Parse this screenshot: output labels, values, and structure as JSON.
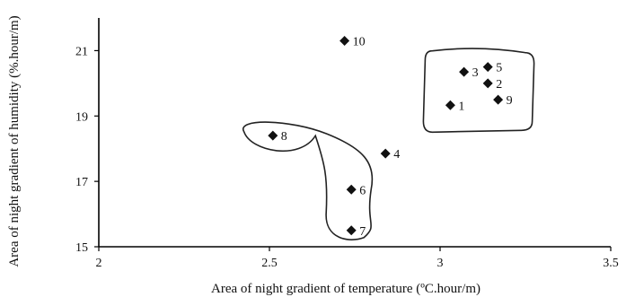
{
  "chart_data": {
    "type": "scatter",
    "title": "",
    "xlabel": "Area of night gradient of temperature  (ºC.hour/m)",
    "ylabel": "Area of night gradient of humidity (%.hour/m)",
    "xlim": [
      2,
      3.5
    ],
    "ylim": [
      15,
      22
    ],
    "xticks": [
      "2",
      "2.5",
      "3",
      "3.5"
    ],
    "yticks": [
      "15",
      "17",
      "19",
      "21"
    ],
    "xtick_values": [
      2,
      2.5,
      3,
      3.5
    ],
    "ytick_values": [
      15,
      17,
      19,
      21
    ],
    "grid": false,
    "marker": "diamond",
    "points": [
      {
        "label": "1",
        "x": 3.03,
        "y": 19.33
      },
      {
        "label": "2",
        "x": 3.14,
        "y": 20.0
      },
      {
        "label": "3",
        "x": 3.07,
        "y": 20.35
      },
      {
        "label": "4",
        "x": 2.84,
        "y": 17.85
      },
      {
        "label": "5",
        "x": 3.14,
        "y": 20.5
      },
      {
        "label": "6",
        "x": 2.74,
        "y": 16.75
      },
      {
        "label": "7",
        "x": 2.74,
        "y": 15.5
      },
      {
        "label": "8",
        "x": 2.51,
        "y": 18.4
      },
      {
        "label": "9",
        "x": 3.17,
        "y": 19.5
      },
      {
        "label": "10",
        "x": 2.72,
        "y": 21.3
      }
    ],
    "clusters": [
      {
        "members": [
          "1",
          "2",
          "3",
          "5",
          "9"
        ]
      },
      {
        "members": [
          "6",
          "7",
          "8"
        ]
      }
    ]
  }
}
